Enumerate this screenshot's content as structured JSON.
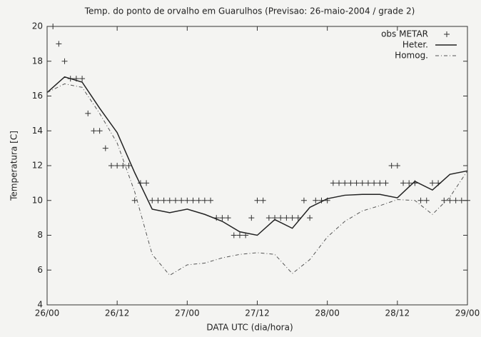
{
  "chart_data": {
    "type": "line",
    "title": "Temp. do ponto de orvalho em Guarulhos (Previsao: 26-maio-2004 / grade 2)",
    "xlabel": "DATA UTC (dia/hora)",
    "ylabel": "Temperatura [C]",
    "xlim": [
      0,
      72
    ],
    "ylim": [
      4,
      20
    ],
    "xticks": [
      {
        "value": 0,
        "label": "26/00"
      },
      {
        "value": 12,
        "label": "26/12"
      },
      {
        "value": 24,
        "label": "27/00"
      },
      {
        "value": 36,
        "label": "27/12"
      },
      {
        "value": 48,
        "label": "28/00"
      },
      {
        "value": 60,
        "label": "28/12"
      },
      {
        "value": 72,
        "label": "29/00"
      }
    ],
    "yticks": [
      4,
      6,
      8,
      10,
      12,
      14,
      16,
      18,
      20
    ],
    "legend": "top-right",
    "series": [
      {
        "name": "obs METAR",
        "color": "#333333",
        "style": "plus",
        "x": [
          1,
          2,
          3,
          4,
          5,
          6,
          7,
          8,
          9,
          10,
          11,
          12,
          13,
          14,
          15,
          16,
          17,
          18,
          19,
          20,
          21,
          22,
          23,
          24,
          25,
          26,
          27,
          28,
          29,
          30,
          31,
          32,
          33,
          34,
          35,
          36,
          37,
          38,
          39,
          40,
          41,
          42,
          43,
          44,
          45,
          46,
          47,
          48,
          49,
          50,
          51,
          52,
          53,
          54,
          55,
          56,
          57,
          58,
          59,
          60,
          61,
          62,
          63,
          64,
          65,
          66,
          67,
          68,
          69,
          70,
          71,
          72
        ],
        "values": [
          20,
          19,
          18,
          17,
          17,
          17,
          15,
          14,
          14,
          13,
          12,
          12,
          12,
          12,
          10,
          11,
          11,
          10,
          10,
          10,
          10,
          10,
          10,
          10,
          10,
          10,
          10,
          10,
          9,
          9,
          9,
          8,
          8,
          8,
          9,
          10,
          10,
          9,
          9,
          9,
          9,
          9,
          9,
          10,
          9,
          10,
          10,
          10,
          11,
          11,
          11,
          11,
          11,
          11,
          11,
          11,
          11,
          11,
          12,
          12,
          11,
          11,
          11,
          10,
          10,
          11,
          11,
          10,
          10,
          10,
          10,
          10
        ]
      },
      {
        "name": "Heter.",
        "color": "#222222",
        "style": "solid",
        "x": [
          0,
          3,
          6,
          9,
          12,
          15,
          18,
          21,
          24,
          27,
          30,
          33,
          36,
          39,
          42,
          45,
          48,
          51,
          54,
          57,
          60,
          63,
          66,
          69,
          72
        ],
        "values": [
          16.2,
          17.1,
          16.8,
          15.3,
          13.9,
          11.6,
          9.5,
          9.3,
          9.5,
          9.2,
          8.8,
          8.2,
          8.0,
          8.9,
          8.4,
          9.6,
          10.1,
          10.3,
          10.35,
          10.35,
          10.15,
          11.1,
          10.6,
          11.5,
          11.7
        ]
      },
      {
        "name": "Homog.",
        "color": "#555555",
        "style": "dashdot",
        "x": [
          0,
          3,
          6,
          9,
          12,
          15,
          18,
          21,
          24,
          27,
          30,
          33,
          36,
          39,
          42,
          45,
          48,
          51,
          54,
          57,
          60,
          63,
          66,
          69,
          72
        ],
        "values": [
          16.2,
          16.7,
          16.5,
          15.0,
          13.3,
          10.5,
          6.9,
          5.7,
          6.3,
          6.4,
          6.7,
          6.9,
          7.0,
          6.9,
          5.8,
          6.6,
          7.9,
          8.8,
          9.4,
          9.7,
          10.05,
          10.0,
          9.2,
          10.2,
          11.7
        ]
      }
    ]
  }
}
